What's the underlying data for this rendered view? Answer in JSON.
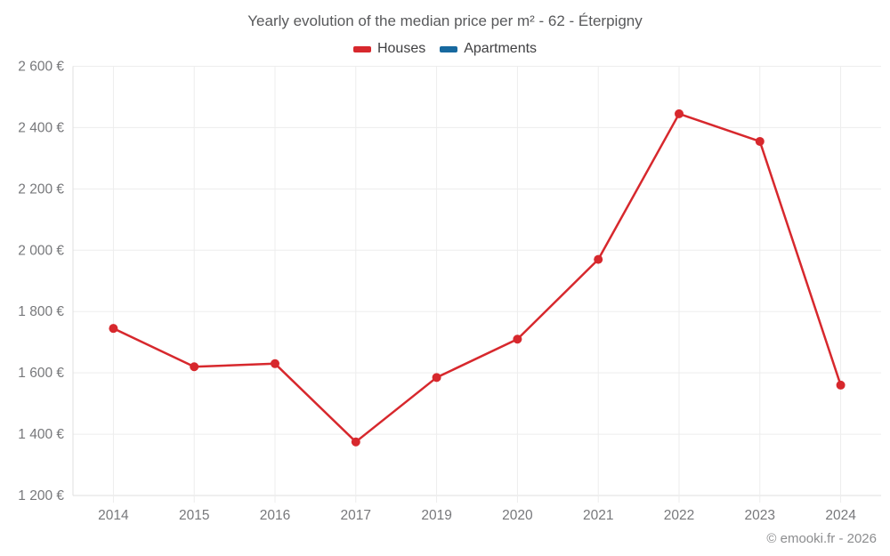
{
  "chart_data": {
    "type": "line",
    "title": "Yearly evolution of the median price per m² - 62 - Éterpigny",
    "categories": [
      "2014",
      "2015",
      "2016",
      "2017",
      "2019",
      "2020",
      "2021",
      "2022",
      "2023",
      "2024"
    ],
    "series": [
      {
        "name": "Houses",
        "color": "#d7282d",
        "values": [
          1745,
          1620,
          1630,
          1375,
          1585,
          1710,
          1970,
          2445,
          2355,
          1560
        ]
      },
      {
        "name": "Apartments",
        "color": "#17699f",
        "values": []
      }
    ],
    "xlabel": "",
    "ylabel": "",
    "ylim": [
      1200,
      2600
    ],
    "ytick_step": 200,
    "ytick_suffix": " €",
    "grid": true,
    "legend_position": "top"
  },
  "footer": {
    "text": "© emooki.fr - 2026"
  },
  "ui": {
    "background": "#ffffff",
    "grid_color": "#ededed",
    "axis_color": "#dfdfdf",
    "title_color": "#58595b",
    "tick_label_color": "#77787b",
    "legend_label_color": "#404042"
  }
}
